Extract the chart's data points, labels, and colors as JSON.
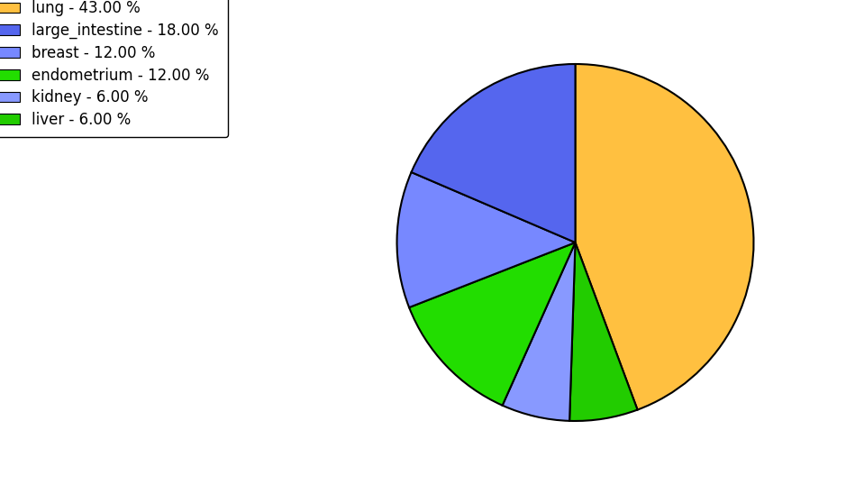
{
  "labels": [
    "lung",
    "liver",
    "kidney",
    "endometrium",
    "breast",
    "large_intestine"
  ],
  "sizes": [
    43.0,
    6.0,
    6.0,
    12.0,
    12.0,
    18.0
  ],
  "colors": [
    "#FFC040",
    "#22CC00",
    "#8899FF",
    "#22DD00",
    "#7788FF",
    "#5566EE"
  ],
  "legend_labels": [
    "lung - 43.00 %",
    "large_intestine - 18.00 %",
    "breast - 12.00 %",
    "endometrium - 12.00 %",
    "kidney - 6.00 %",
    "liver - 6.00 %"
  ],
  "legend_colors": [
    "#FFC040",
    "#5566EE",
    "#7788FF",
    "#22DD00",
    "#8899FF",
    "#22CC00"
  ],
  "startangle": 90,
  "counterclock": false,
  "background_color": "#ffffff",
  "figsize": [
    9.39,
    5.38
  ],
  "dpi": 100
}
